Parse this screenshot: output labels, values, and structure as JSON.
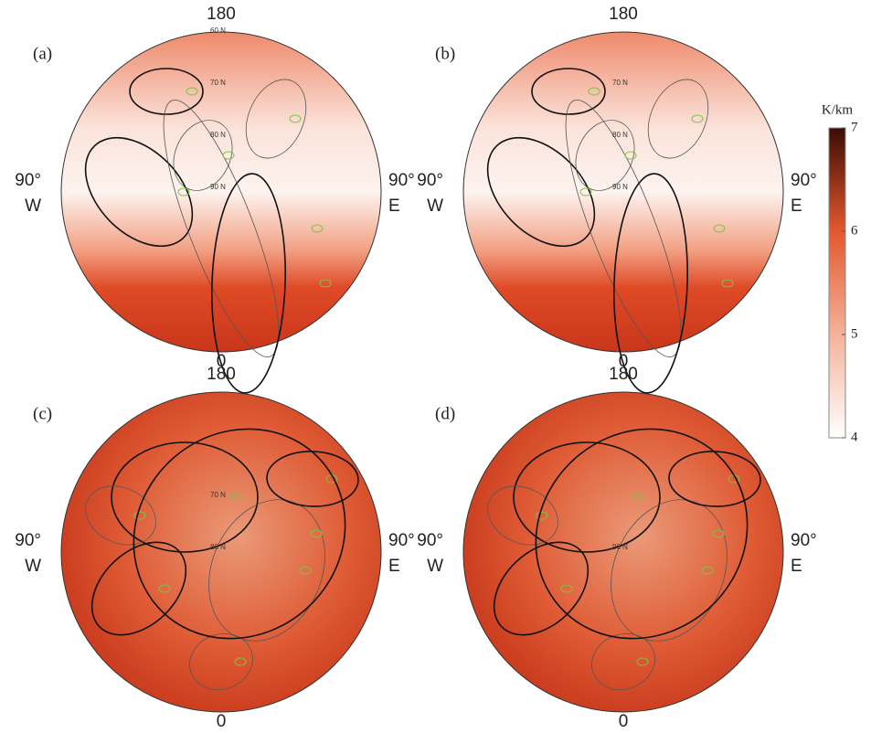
{
  "panels": [
    {
      "label": "(a)",
      "top": "180",
      "bottom": "0",
      "left": [
        "90°",
        "W"
      ],
      "right": [
        "90°",
        "E"
      ],
      "lat_labels": [
        "60 N",
        "70 N",
        "80 N",
        "90 N"
      ]
    },
    {
      "label": "(b)",
      "top": "180",
      "bottom": "0",
      "left": [
        "90°",
        "W"
      ],
      "right": [
        "90°",
        "E"
      ],
      "lat_labels": [
        "70 N",
        "80 N",
        "90 N"
      ]
    },
    {
      "label": "(c)",
      "top": "180",
      "bottom": "0",
      "left": [
        "90°",
        "W"
      ],
      "right": [
        "90°",
        "E"
      ],
      "lat_labels": [
        "70 N",
        "80 N"
      ]
    },
    {
      "label": "(d)",
      "top": "180",
      "bottom": "0",
      "left": [
        "90°",
        "W"
      ],
      "right": [
        "90°",
        "E"
      ],
      "lat_labels": [
        "90 N"
      ]
    }
  ],
  "colorbar": {
    "unit": "K/km",
    "range": [
      4,
      7
    ],
    "ticks": [
      4,
      5,
      6,
      7
    ],
    "colors": [
      "#ffffff",
      "#f4b29a",
      "#e4572e",
      "#3b0c04"
    ]
  }
}
